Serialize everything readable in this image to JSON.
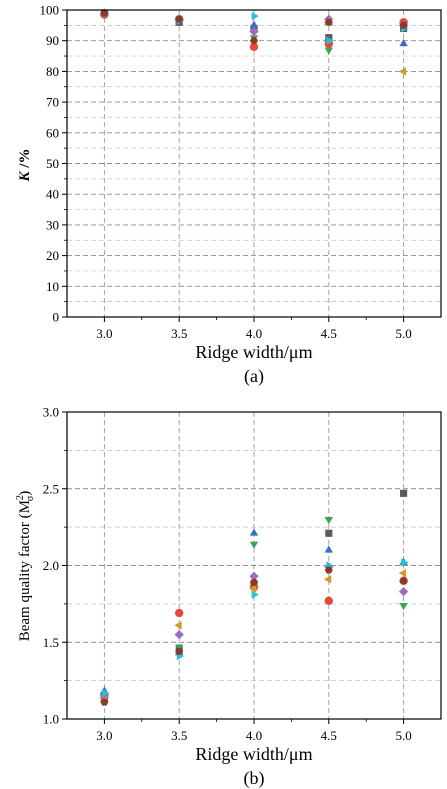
{
  "chart_data": [
    {
      "type": "scatter",
      "panel_label": "(a)",
      "xlabel": "Ridge width/μm",
      "ylabel_italic": "K",
      "ylabel_rest": " /%",
      "xlim": [
        2.75,
        5.25
      ],
      "ylim": [
        0,
        100
      ],
      "x_ticks": [
        3.0,
        3.5,
        4.0,
        4.5,
        5.0
      ],
      "x_tick_labels": [
        "3.0",
        "3.5",
        "4.0",
        "4.5",
        "5.0"
      ],
      "y_ticks": [
        0,
        10,
        20,
        30,
        40,
        50,
        60,
        70,
        80,
        90,
        100
      ],
      "y_tick_labels": [
        "0",
        "10",
        "20",
        "30",
        "40",
        "50",
        "60",
        "70",
        "80",
        "90",
        "100"
      ],
      "minor_y_step": 5,
      "grid": true,
      "series": [
        {
          "marker": "square",
          "color": "#5a5a5a",
          "points": [
            [
              3.0,
              99
            ],
            [
              3.5,
              96
            ],
            [
              4.0,
              94
            ],
            [
              4.5,
              91
            ],
            [
              5.0,
              94
            ]
          ]
        },
        {
          "marker": "circle",
          "color": "#e8453c",
          "points": [
            [
              3.0,
              98.5
            ],
            [
              3.5,
              97
            ],
            [
              4.0,
              88
            ],
            [
              4.5,
              89
            ],
            [
              5.0,
              96
            ]
          ]
        },
        {
          "marker": "triangle-up",
          "color": "#3b6fc4",
          "points": [
            [
              3.0,
              99
            ],
            [
              3.5,
              96.5
            ],
            [
              4.0,
              95
            ],
            [
              4.5,
              96
            ],
            [
              5.0,
              89
            ]
          ]
        },
        {
          "marker": "triangle-down",
          "color": "#3aa655",
          "points": [
            [
              3.0,
              98.5
            ],
            [
              3.5,
              97
            ],
            [
              4.0,
              91
            ],
            [
              4.5,
              87
            ],
            [
              5.0,
              95
            ]
          ]
        },
        {
          "marker": "diamond",
          "color": "#9b6cc0",
          "points": [
            [
              3.0,
              99
            ],
            [
              3.5,
              97
            ],
            [
              4.0,
              93
            ],
            [
              4.5,
              97
            ],
            [
              5.0,
              95
            ]
          ]
        },
        {
          "marker": "triangle-left",
          "color": "#d39a28",
          "points": [
            [
              3.0,
              99
            ],
            [
              3.5,
              97
            ],
            [
              4.0,
              90
            ],
            [
              4.5,
              96
            ],
            [
              5.0,
              80
            ]
          ]
        },
        {
          "marker": "triangle-right",
          "color": "#27c1d8",
          "points": [
            [
              3.0,
              99
            ],
            [
              3.5,
              96.5
            ],
            [
              4.0,
              98
            ],
            [
              4.5,
              90
            ],
            [
              5.0,
              94
            ]
          ]
        },
        {
          "marker": "hexagon",
          "color": "#8b3a2a",
          "points": [
            [
              3.0,
              99
            ],
            [
              3.5,
              97
            ],
            [
              4.0,
              90
            ],
            [
              4.5,
              96
            ],
            [
              5.0,
              95
            ]
          ]
        }
      ]
    },
    {
      "type": "scatter",
      "panel_label": "(b)",
      "xlabel": "Ridge width/μm",
      "ylabel": "Beam quality factor (M",
      "ylabel_sup": "2",
      "ylabel_sub": "σ",
      "ylabel_close": ")",
      "xlim": [
        2.75,
        5.25
      ],
      "ylim": [
        1.0,
        3.0
      ],
      "x_ticks": [
        3.0,
        3.5,
        4.0,
        4.5,
        5.0
      ],
      "x_tick_labels": [
        "3.0",
        "3.5",
        "4.0",
        "4.5",
        "5.0"
      ],
      "y_ticks": [
        1.0,
        1.5,
        2.0,
        2.5,
        3.0
      ],
      "y_tick_labels": [
        "1.0",
        "1.5",
        "2.0",
        "2.5",
        "3.0"
      ],
      "minor_y_step": 0.25,
      "grid": true,
      "series": [
        {
          "marker": "square",
          "color": "#5a5a5a",
          "points": [
            [
              3.0,
              1.13
            ],
            [
              3.5,
              1.45
            ],
            [
              4.0,
              1.88
            ],
            [
              4.5,
              2.21
            ],
            [
              5.0,
              2.47
            ]
          ]
        },
        {
          "marker": "circle",
          "color": "#e8453c",
          "points": [
            [
              3.0,
              1.16
            ],
            [
              3.5,
              1.69
            ],
            [
              4.0,
              1.86
            ],
            [
              4.5,
              1.77
            ],
            [
              5.0,
              1.9
            ]
          ]
        },
        {
          "marker": "triangle-up",
          "color": "#3b6fc4",
          "points": [
            [
              3.0,
              1.18
            ],
            [
              3.5,
              1.43
            ],
            [
              4.0,
              2.21
            ],
            [
              4.5,
              2.1
            ],
            [
              5.0,
              2.02
            ]
          ]
        },
        {
          "marker": "triangle-down",
          "color": "#3aa655",
          "points": [
            [
              3.0,
              1.15
            ],
            [
              3.5,
              1.47
            ],
            [
              4.0,
              2.14
            ],
            [
              4.5,
              2.3
            ],
            [
              5.0,
              1.74
            ]
          ]
        },
        {
          "marker": "diamond",
          "color": "#9b6cc0",
          "points": [
            [
              3.0,
              1.14
            ],
            [
              3.5,
              1.55
            ],
            [
              4.0,
              1.93
            ],
            [
              4.5,
              1.99
            ],
            [
              5.0,
              1.83
            ]
          ]
        },
        {
          "marker": "triangle-left",
          "color": "#d39a28",
          "points": [
            [
              3.0,
              1.12
            ],
            [
              3.5,
              1.61
            ],
            [
              4.0,
              1.85
            ],
            [
              4.5,
              1.91
            ],
            [
              5.0,
              1.95
            ]
          ]
        },
        {
          "marker": "triangle-right",
          "color": "#27c1d8",
          "points": [
            [
              3.0,
              1.17
            ],
            [
              3.5,
              1.41
            ],
            [
              4.0,
              1.81
            ],
            [
              4.5,
              2.0
            ],
            [
              5.0,
              2.02
            ]
          ]
        },
        {
          "marker": "hexagon",
          "color": "#8b3a2a",
          "points": [
            [
              3.0,
              1.11
            ],
            [
              3.5,
              1.44
            ],
            [
              4.0,
              1.89
            ],
            [
              4.5,
              1.97
            ],
            [
              5.0,
              1.9
            ]
          ]
        }
      ]
    }
  ]
}
